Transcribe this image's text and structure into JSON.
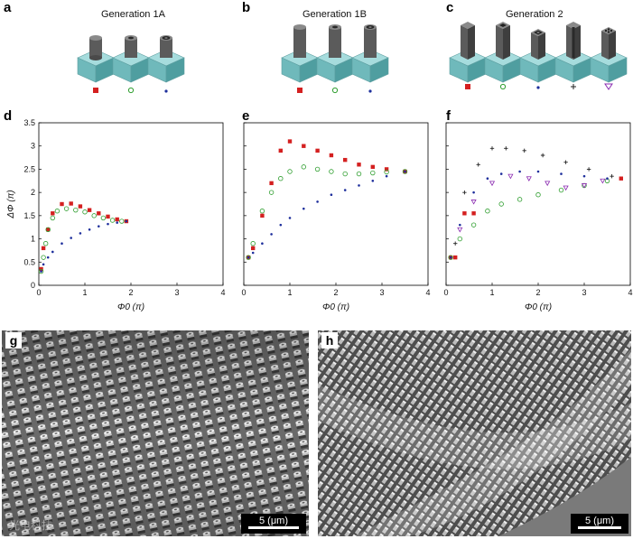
{
  "figure": {
    "panels_top": [
      {
        "letter": "a",
        "title": "Generation 1A"
      },
      {
        "letter": "b",
        "title": "Generation 1B"
      },
      {
        "letter": "c",
        "title": "Generation 2"
      }
    ],
    "plot_letters": [
      "d",
      "e",
      "f"
    ],
    "sem": [
      {
        "letter": "g",
        "scale": "5 (μm)",
        "watermark": "光电科技"
      },
      {
        "letter": "h",
        "scale": "5 (μm)"
      }
    ],
    "axis": {
      "ylabel": "ΔΦ (π)",
      "xlabel": "Φ0 (π)",
      "yticks": [
        "0",
        "0.5",
        "1",
        "1.5",
        "2",
        "2.5",
        "3",
        "3.5"
      ],
      "xticks": [
        "0",
        "1",
        "2",
        "3",
        "4"
      ]
    },
    "colors": {
      "red": "#d42020",
      "green": "#2f9e2f",
      "blue": "#1e2f9c",
      "black": "#222222",
      "purple": "#8a2ab0",
      "cube": "#7fc7c9",
      "pillar": "#5b5b5b"
    },
    "legend_icons": [
      "red-square-icon",
      "green-circle-icon",
      "blue-dot-icon",
      "black-plus-icon",
      "purple-triangle-icon"
    ]
  },
  "chart_data": [
    {
      "type": "scatter",
      "title": "",
      "xlabel": "Φ0 (π)",
      "ylabel": "ΔΦ (π)",
      "xlim": [
        0,
        4
      ],
      "ylim": [
        0,
        3.5
      ],
      "series": [
        {
          "marker": "square",
          "color": "#d42020",
          "x": [
            0.05,
            0.1,
            0.2,
            0.3,
            0.5,
            0.7,
            0.9,
            1.1,
            1.3,
            1.5,
            1.7,
            1.9
          ],
          "y": [
            0.35,
            0.8,
            1.2,
            1.55,
            1.75,
            1.76,
            1.7,
            1.62,
            1.55,
            1.48,
            1.42,
            1.38
          ]
        },
        {
          "marker": "circle",
          "color": "#2f9e2f",
          "x": [
            0.05,
            0.1,
            0.15,
            0.2,
            0.3,
            0.4,
            0.6,
            0.8,
            1.0,
            1.2,
            1.4,
            1.6,
            1.8
          ],
          "y": [
            0.3,
            0.6,
            0.9,
            1.2,
            1.45,
            1.6,
            1.65,
            1.62,
            1.58,
            1.5,
            1.45,
            1.4,
            1.38
          ]
        },
        {
          "marker": "dot",
          "color": "#1e2f9c",
          "x": [
            0.05,
            0.1,
            0.2,
            0.3,
            0.5,
            0.7,
            0.9,
            1.1,
            1.3,
            1.5,
            1.7,
            1.9
          ],
          "y": [
            0.3,
            0.45,
            0.6,
            0.72,
            0.9,
            1.02,
            1.12,
            1.2,
            1.27,
            1.32,
            1.35,
            1.38
          ]
        }
      ]
    },
    {
      "type": "scatter",
      "title": "",
      "xlabel": "Φ0 (π)",
      "ylabel": "",
      "xlim": [
        0,
        4
      ],
      "ylim": [
        0,
        3.5
      ],
      "series": [
        {
          "marker": "square",
          "color": "#d42020",
          "x": [
            0.1,
            0.2,
            0.4,
            0.6,
            0.8,
            1.0,
            1.3,
            1.6,
            1.9,
            2.2,
            2.5,
            2.8,
            3.1,
            3.5
          ],
          "y": [
            0.6,
            0.8,
            1.5,
            2.2,
            2.9,
            3.1,
            3.0,
            2.9,
            2.8,
            2.7,
            2.6,
            2.55,
            2.5,
            2.45
          ]
        },
        {
          "marker": "circle",
          "color": "#2f9e2f",
          "x": [
            0.1,
            0.2,
            0.4,
            0.6,
            0.8,
            1.0,
            1.3,
            1.6,
            1.9,
            2.2,
            2.5,
            2.8,
            3.1,
            3.5
          ],
          "y": [
            0.6,
            0.9,
            1.6,
            2.0,
            2.3,
            2.45,
            2.55,
            2.5,
            2.45,
            2.4,
            2.4,
            2.42,
            2.44,
            2.45
          ]
        },
        {
          "marker": "dot",
          "color": "#1e2f9c",
          "x": [
            0.1,
            0.2,
            0.4,
            0.6,
            0.8,
            1.0,
            1.3,
            1.6,
            1.9,
            2.2,
            2.5,
            2.8,
            3.1,
            3.5
          ],
          "y": [
            0.6,
            0.7,
            0.9,
            1.1,
            1.3,
            1.45,
            1.65,
            1.8,
            1.95,
            2.05,
            2.15,
            2.25,
            2.35,
            2.45
          ]
        }
      ]
    },
    {
      "type": "scatter",
      "title": "",
      "xlabel": "Φ0 (π)",
      "ylabel": "",
      "xlim": [
        0,
        4
      ],
      "ylim": [
        0,
        3.5
      ],
      "series": [
        {
          "marker": "square",
          "color": "#d42020",
          "x": [
            0.1,
            0.2,
            0.4,
            0.6,
            3.8
          ],
          "y": [
            0.6,
            0.6,
            1.55,
            1.55,
            2.3
          ]
        },
        {
          "marker": "circle",
          "color": "#2f9e2f",
          "x": [
            0.1,
            0.3,
            0.6,
            0.9,
            1.2,
            1.6,
            2.0,
            2.5,
            3.0,
            3.5
          ],
          "y": [
            0.6,
            1.0,
            1.3,
            1.6,
            1.75,
            1.85,
            1.95,
            2.05,
            2.15,
            2.25
          ]
        },
        {
          "marker": "dot",
          "color": "#1e2f9c",
          "x": [
            0.1,
            0.3,
            0.6,
            0.9,
            1.2,
            1.6,
            2.0,
            2.5,
            3.0,
            3.5
          ],
          "y": [
            0.6,
            1.3,
            2.0,
            2.3,
            2.4,
            2.45,
            2.45,
            2.4,
            2.35,
            2.3
          ]
        },
        {
          "marker": "plus",
          "color": "#222222",
          "x": [
            0.2,
            0.4,
            0.7,
            1.0,
            1.3,
            1.7,
            2.1,
            2.6,
            3.1,
            3.6
          ],
          "y": [
            0.9,
            2.0,
            2.6,
            2.95,
            2.95,
            2.9,
            2.8,
            2.65,
            2.5,
            2.35
          ]
        },
        {
          "marker": "triangle",
          "color": "#8a2ab0",
          "x": [
            0.3,
            0.6,
            1.0,
            1.4,
            1.8,
            2.2,
            2.6,
            3.0,
            3.4
          ],
          "y": [
            1.2,
            1.8,
            2.2,
            2.35,
            2.3,
            2.2,
            2.1,
            2.15,
            2.25
          ]
        }
      ]
    }
  ]
}
